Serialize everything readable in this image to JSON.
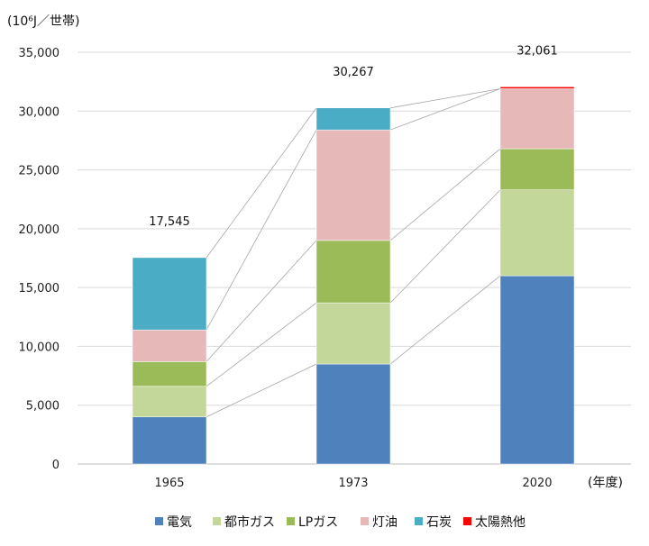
{
  "chart_data": {
    "type": "bar",
    "stacked": true,
    "y_unit_label": "(10⁶J／世帯)",
    "x_unit_label": "(年度)",
    "categories": [
      "1965",
      "1973",
      "2020"
    ],
    "totals": [
      "17,545",
      "30,267",
      "32,061"
    ],
    "ylim": [
      0,
      35000
    ],
    "yticks": [
      0,
      5000,
      10000,
      15000,
      20000,
      25000,
      30000,
      35000
    ],
    "ytick_labels": [
      "0",
      "5,000",
      "10,000",
      "15,000",
      "20,000",
      "25,000",
      "30,000",
      "35,000"
    ],
    "grid": true,
    "legend_position": "bottom",
    "series": [
      {
        "name": "電気",
        "color": "#4f81bd",
        "values": [
          4000,
          8500,
          16000
        ]
      },
      {
        "name": "都市ガス",
        "color": "#c4d79b",
        "values": [
          2600,
          5200,
          7300
        ]
      },
      {
        "name": "LPガス",
        "color": "#9bbb59",
        "values": [
          2100,
          5300,
          3500
        ]
      },
      {
        "name": "灯油",
        "color": "#e6b9b8",
        "values": [
          2700,
          9400,
          5100
        ]
      },
      {
        "name": "石炭",
        "color": "#4bacc6",
        "values": [
          6145,
          1867,
          0
        ]
      },
      {
        "name": "太陽熱他",
        "color": "#ff0000",
        "values": [
          0,
          0,
          161
        ]
      }
    ]
  }
}
